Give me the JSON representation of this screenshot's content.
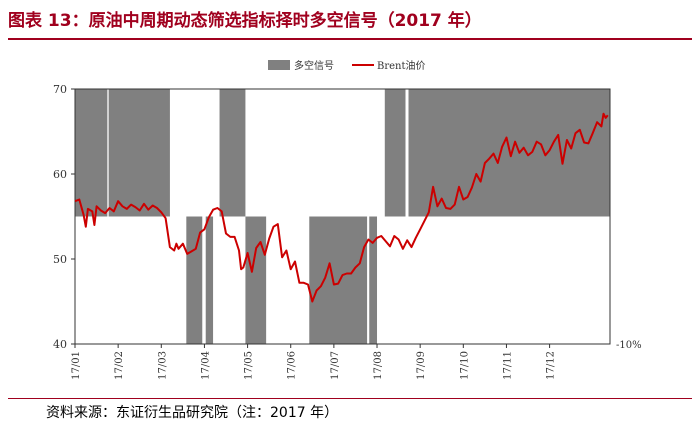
{
  "title": "图表 13：原油中周期动态筛选指标择时多空信号（2017 年）",
  "source": "资料来源：东证衍生品研究院（注：2017 年）",
  "colors": {
    "accent": "#a0001e",
    "signal": "#808080",
    "line": "#cc0000"
  },
  "chart_data": {
    "type": "area",
    "title": "",
    "legend": {
      "position": "top-center",
      "entries": [
        "多空信号",
        "Brent油价"
      ]
    },
    "xlabel": "",
    "ylabel": "",
    "ylim": [
      40,
      70
    ],
    "yticks": [
      40,
      50,
      60,
      70
    ],
    "x_range": [
      0,
      12.4
    ],
    "xticks": [
      {
        "label": "17/01",
        "x": 0
      },
      {
        "label": "17/02",
        "x": 1
      },
      {
        "label": "17/03",
        "x": 2
      },
      {
        "label": "17/04",
        "x": 3
      },
      {
        "label": "17/05",
        "x": 4
      },
      {
        "label": "17/06",
        "x": 5
      },
      {
        "label": "17/07",
        "x": 6
      },
      {
        "label": "17/08",
        "x": 7
      },
      {
        "label": "17/09",
        "x": 8
      },
      {
        "label": "17/10",
        "x": 9
      },
      {
        "label": "17/11",
        "x": 10
      },
      {
        "label": "17/12",
        "x": 11
      }
    ],
    "secondary_axis_label": "-10%",
    "signal_baseline": 55,
    "signal_long": 70,
    "signal_short": 40,
    "signal_segments": [
      {
        "start": 0.0,
        "end": 0.75,
        "signal": "long"
      },
      {
        "start": 0.78,
        "end": 2.2,
        "signal": "long"
      },
      {
        "start": 2.58,
        "end": 2.95,
        "signal": "short"
      },
      {
        "start": 3.03,
        "end": 3.2,
        "signal": "short"
      },
      {
        "start": 3.35,
        "end": 3.95,
        "signal": "long"
      },
      {
        "start": 3.95,
        "end": 4.43,
        "signal": "short"
      },
      {
        "start": 5.43,
        "end": 6.77,
        "signal": "short"
      },
      {
        "start": 6.82,
        "end": 7.0,
        "signal": "short"
      },
      {
        "start": 7.18,
        "end": 7.66,
        "signal": "long"
      },
      {
        "start": 7.73,
        "end": 12.4,
        "signal": "long"
      }
    ],
    "series": [
      {
        "name": "Brent油价",
        "x": [
          0.0,
          0.1,
          0.2,
          0.25,
          0.3,
          0.4,
          0.45,
          0.5,
          0.6,
          0.7,
          0.8,
          0.9,
          1.0,
          1.1,
          1.2,
          1.3,
          1.4,
          1.5,
          1.6,
          1.7,
          1.8,
          1.9,
          2.0,
          2.1,
          2.2,
          2.3,
          2.35,
          2.4,
          2.5,
          2.6,
          2.7,
          2.8,
          2.9,
          3.0,
          3.1,
          3.2,
          3.3,
          3.4,
          3.5,
          3.6,
          3.7,
          3.8,
          3.85,
          3.9,
          4.0,
          4.1,
          4.2,
          4.3,
          4.4,
          4.5,
          4.6,
          4.7,
          4.8,
          4.9,
          5.0,
          5.1,
          5.2,
          5.3,
          5.4,
          5.5,
          5.6,
          5.7,
          5.8,
          5.9,
          6.0,
          6.1,
          6.2,
          6.3,
          6.4,
          6.5,
          6.6,
          6.7,
          6.8,
          6.9,
          7.0,
          7.1,
          7.2,
          7.3,
          7.4,
          7.5,
          7.6,
          7.7,
          7.8,
          7.9,
          8.0,
          8.1,
          8.2,
          8.3,
          8.4,
          8.5,
          8.6,
          8.7,
          8.8,
          8.9,
          9.0,
          9.1,
          9.2,
          9.3,
          9.4,
          9.5,
          9.6,
          9.7,
          9.8,
          9.9,
          10.0,
          10.1,
          10.2,
          10.3,
          10.4,
          10.5,
          10.6,
          10.7,
          10.8,
          10.9,
          11.0,
          11.1,
          11.2,
          11.3,
          11.4,
          11.5,
          11.6,
          11.7,
          11.8,
          11.9,
          12.0,
          12.1,
          12.2,
          12.25,
          12.3,
          12.35
        ],
        "values": [
          56.8,
          57.0,
          55.2,
          53.8,
          55.9,
          55.6,
          54.0,
          56.2,
          55.7,
          55.4,
          56.0,
          55.6,
          56.8,
          56.2,
          55.9,
          56.4,
          56.1,
          55.7,
          56.5,
          55.8,
          56.3,
          56.0,
          55.5,
          54.8,
          51.4,
          51.0,
          51.8,
          51.2,
          51.8,
          50.6,
          50.9,
          51.2,
          53.1,
          53.5,
          54.9,
          55.8,
          56.0,
          55.6,
          53.0,
          52.6,
          52.6,
          51.0,
          48.8,
          49.0,
          50.7,
          48.5,
          51.3,
          52.0,
          50.5,
          52.4,
          53.8,
          54.1,
          50.2,
          51.0,
          48.8,
          49.7,
          47.2,
          47.2,
          47.0,
          45.0,
          46.3,
          46.8,
          47.8,
          49.5,
          47.0,
          47.1,
          48.1,
          48.3,
          48.3,
          49.0,
          49.5,
          51.4,
          52.3,
          51.9,
          52.5,
          52.7,
          52.1,
          51.5,
          52.7,
          52.3,
          51.2,
          52.2,
          51.4,
          52.5,
          53.5,
          54.5,
          55.5,
          58.5,
          56.2,
          57.1,
          56.0,
          55.9,
          56.4,
          58.5,
          57.0,
          57.3,
          58.4,
          60.0,
          59.1,
          61.3,
          61.8,
          62.4,
          61.3,
          63.2,
          64.3,
          62.1,
          63.8,
          62.5,
          63.1,
          62.2,
          62.6,
          63.8,
          63.5,
          62.2,
          62.8,
          63.8,
          64.6,
          61.2,
          64.0,
          63.0,
          64.8,
          65.2,
          63.7,
          63.6,
          64.8,
          66.1,
          65.6,
          67.1,
          66.6,
          66.9
        ]
      }
    ]
  }
}
